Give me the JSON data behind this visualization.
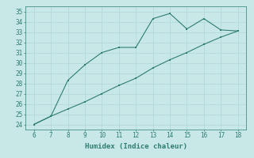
{
  "line1_x": [
    6,
    7,
    8,
    9,
    10,
    11,
    12,
    13,
    14,
    15,
    16,
    17,
    18
  ],
  "line1_y": [
    24.0,
    24.8,
    28.3,
    29.8,
    31.0,
    31.5,
    31.5,
    34.3,
    34.8,
    33.3,
    34.3,
    33.2,
    33.1
  ],
  "line2_x": [
    6,
    7,
    8,
    9,
    10,
    11,
    12,
    13,
    14,
    15,
    16,
    17,
    18
  ],
  "line2_y": [
    24.0,
    24.8,
    25.5,
    26.2,
    27.0,
    27.8,
    28.5,
    29.5,
    30.3,
    31.0,
    31.8,
    32.5,
    33.1
  ],
  "line_color": "#2e7d6e",
  "bg_color": "#c8e8e8",
  "grid_color": "#b0d4d4",
  "xlabel": "Humidex (Indice chaleur)",
  "xlim": [
    5.5,
    18.5
  ],
  "ylim": [
    23.5,
    35.5
  ],
  "xticks": [
    6,
    7,
    8,
    9,
    10,
    11,
    12,
    13,
    14,
    15,
    16,
    17,
    18
  ],
  "yticks": [
    24,
    25,
    26,
    27,
    28,
    29,
    30,
    31,
    32,
    33,
    34,
    35
  ],
  "tick_fontsize": 5.5,
  "xlabel_fontsize": 6.5
}
